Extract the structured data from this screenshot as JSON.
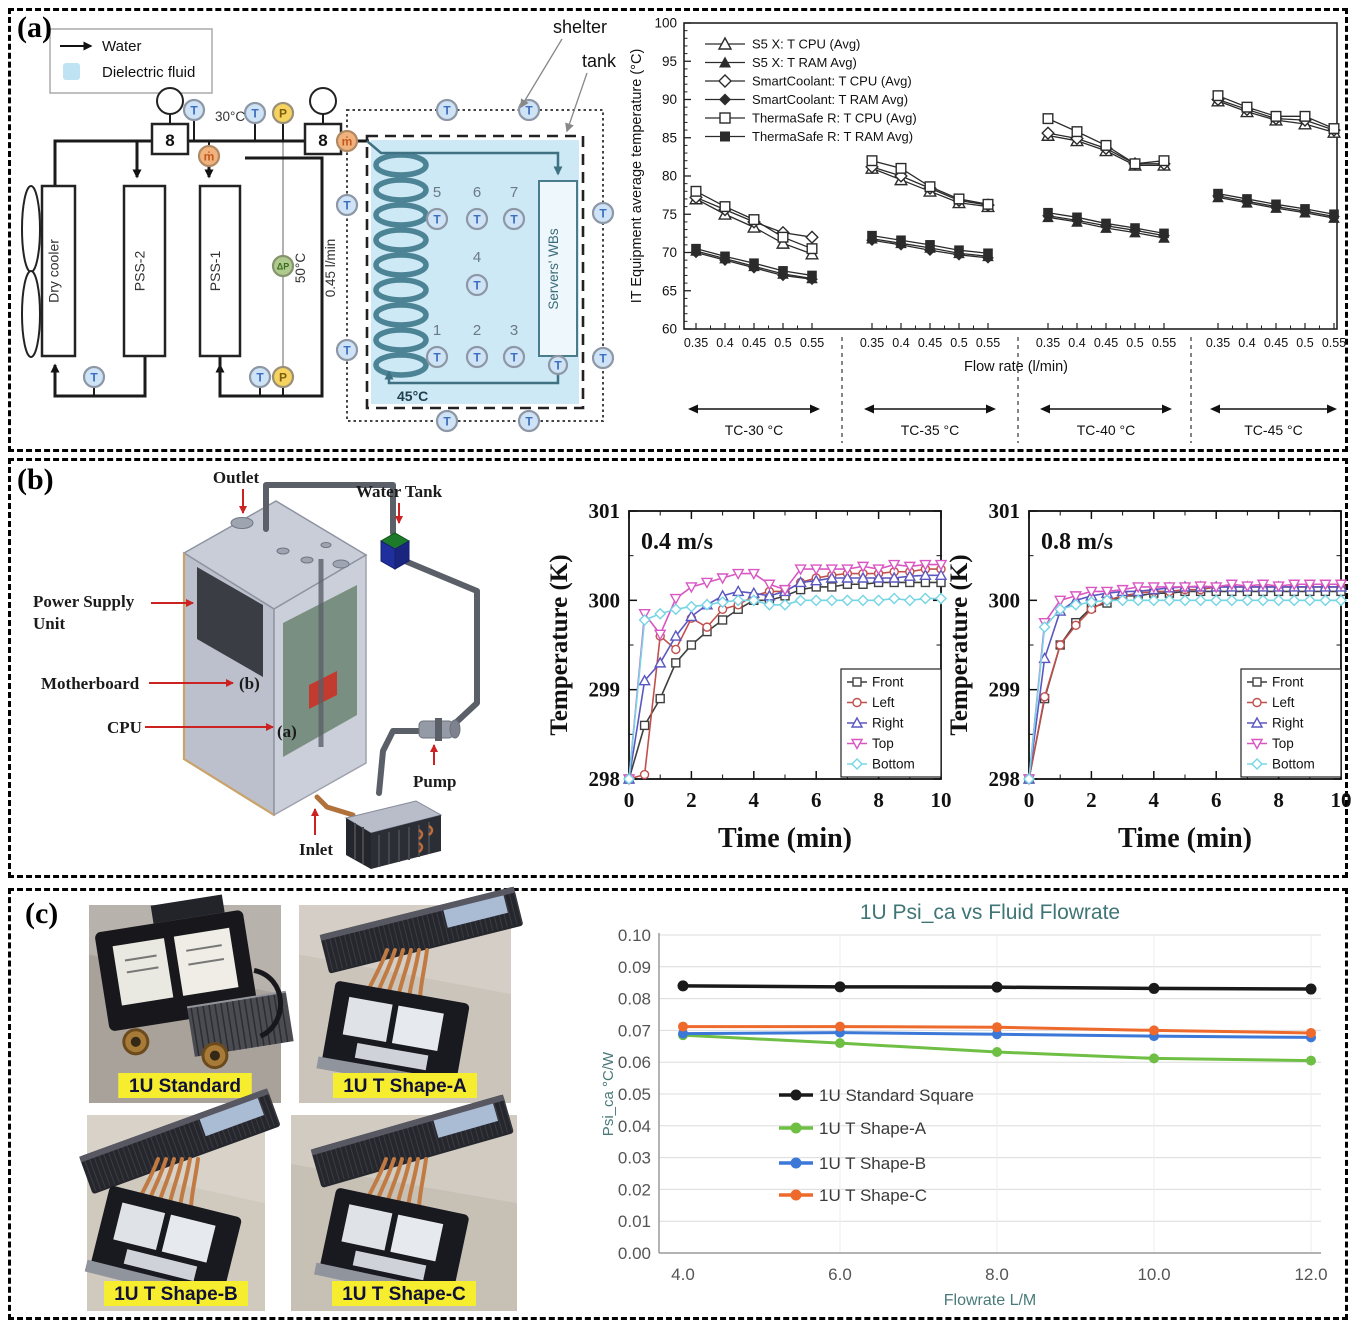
{
  "figure": {
    "panel_a_label": "(a)",
    "panel_b_label": "(b)",
    "panel_c_label": "(c)"
  },
  "panel_a": {
    "diagram": {
      "legend": {
        "water_label": "Water",
        "dielectric_label": "Dielectric fluid",
        "dielectric_color": "#bfe3f2"
      },
      "boxes": {
        "dry_cooler": "Dry cooler",
        "pss2": "PSS-2",
        "pss1": "PSS-1",
        "servers_wbs": "Servers' WBs"
      },
      "annotations": {
        "temp_in": "30°C",
        "temp_mid": "50°C",
        "flow": "0.45 l/min",
        "temp_coil": "45°C",
        "shelter": "shelter",
        "tank": "tank"
      },
      "sensors": {
        "temperature": "T",
        "pressure": "P",
        "mass_flow": "ṁ",
        "diff_pressure": "ΔP",
        "pump_glyph": "8"
      },
      "tank_sensor_numbers": [
        "1",
        "2",
        "3",
        "4",
        "5",
        "6",
        "7"
      ],
      "fluid_color": "#cde9f5"
    }
  },
  "panel_b": {
    "cad": {
      "outlet": "Outlet",
      "water_tank": "Water Tank",
      "psu_line1": "Power Supply",
      "psu_line2": "Unit",
      "motherboard": "Motherboard",
      "cpu": "CPU",
      "pump": "Pump",
      "inlet": "Inlet",
      "tag_a": "(a)",
      "tag_b": "(b)"
    }
  },
  "panel_c": {
    "photos": [
      {
        "label": "1U Standard"
      },
      {
        "label": "1U T Shape-A"
      },
      {
        "label": "1U T Shape-B"
      },
      {
        "label": "1U T Shape-C"
      }
    ],
    "label_bg": "#f5ed2e"
  },
  "chart_data": [
    {
      "id": "panel-a-it-temperature-vs-flowrate",
      "type": "line",
      "title": "",
      "xlabel": "Flow rate (l/min)",
      "ylabel": "IT Equipment average  temperature (°C)",
      "ylim": [
        60,
        100
      ],
      "yticks": [
        60,
        65,
        70,
        75,
        80,
        85,
        90,
        95,
        100
      ],
      "x_tick_labels": [
        "0.35",
        "0.4",
        "0.45",
        "0.5",
        "0.55"
      ],
      "group_labels": [
        "TC-30 °C",
        "TC-35 °C",
        "TC-40 °C",
        "TC-45 °C"
      ],
      "legend_position": "top-left",
      "series": [
        {
          "name": "S5 X: T CPU (Avg)",
          "marker": "triangle-open",
          "color": "#2b2b2b",
          "groups": [
            [
              77.0,
              75.0,
              73.3,
              71.2,
              69.8
            ],
            [
              81.0,
              79.5,
              78.0,
              76.5,
              76.0
            ],
            [
              85.3,
              84.6,
              83.3,
              81.4,
              81.4
            ],
            [
              89.8,
              88.4,
              87.3,
              86.8,
              85.7
            ]
          ]
        },
        {
          "name": "S5 X: T RAM Avg)",
          "marker": "triangle-filled",
          "color": "#2b2b2b",
          "groups": [
            [
              70.2,
              69.2,
              68.2,
              67.2,
              66.6
            ],
            [
              71.8,
              71.2,
              70.6,
              69.9,
              69.5
            ],
            [
              74.6,
              74.0,
              73.2,
              72.6,
              71.9
            ],
            [
              77.2,
              76.5,
              75.8,
              75.2,
              74.5
            ]
          ]
        },
        {
          "name": "SmartCoolant: T CPU (Avg)",
          "marker": "diamond-open",
          "color": "#2b2b2b",
          "groups": [
            [
              77.2,
              75.6,
              74.0,
              72.6,
              72.0
            ],
            [
              81.2,
              80.0,
              78.4,
              76.8,
              76.2
            ],
            [
              85.6,
              84.9,
              83.6,
              81.6,
              81.6
            ],
            [
              90.0,
              88.7,
              87.5,
              87.3,
              86.0
            ]
          ]
        },
        {
          "name": "SmartCoolant: T RAM Avg)",
          "marker": "diamond-filled",
          "color": "#2b2b2b",
          "groups": [
            [
              70.0,
              69.0,
              68.0,
              67.0,
              66.5
            ],
            [
              71.6,
              71.0,
              70.3,
              69.7,
              69.3
            ],
            [
              74.8,
              74.2,
              73.5,
              72.9,
              72.2
            ],
            [
              77.4,
              76.7,
              76.0,
              75.4,
              74.7
            ]
          ]
        },
        {
          "name": "ThermaSafe R: T CPU (Avg)",
          "marker": "square-open",
          "color": "#2b2b2b",
          "groups": [
            [
              78.0,
              76.0,
              74.3,
              72.0,
              70.5
            ],
            [
              82.0,
              81.0,
              78.6,
              77.0,
              76.3
            ],
            [
              87.5,
              85.8,
              84.0,
              81.6,
              82.0
            ],
            [
              90.5,
              89.0,
              87.8,
              87.8,
              86.2
            ]
          ]
        },
        {
          "name": "ThermaSafe R: T RAM Avg)",
          "marker": "square-filled",
          "color": "#2b2b2b",
          "groups": [
            [
              70.5,
              69.5,
              68.6,
              67.6,
              67.0
            ],
            [
              72.2,
              71.6,
              71.0,
              70.3,
              69.9
            ],
            [
              75.2,
              74.6,
              73.8,
              73.2,
              72.5
            ],
            [
              77.7,
              77.0,
              76.3,
              75.7,
              75.0
            ]
          ]
        }
      ]
    },
    {
      "id": "panel-b-transient-04ms",
      "type": "line",
      "annotation": "0.4 m/s",
      "xlabel": "Time (min)",
      "ylabel": "Temperature (K)",
      "xlim": [
        0,
        10
      ],
      "ylim": [
        298,
        301
      ],
      "xticks": [
        0,
        2,
        4,
        6,
        8,
        10
      ],
      "yticks": [
        298,
        299,
        300,
        301
      ],
      "x": [
        0,
        0.5,
        1,
        1.5,
        2,
        2.5,
        3,
        3.5,
        4,
        4.5,
        5,
        5.5,
        6,
        6.5,
        7,
        7.5,
        8,
        8.5,
        9,
        9.5,
        10
      ],
      "series": [
        {
          "name": "Front",
          "marker": "square-open",
          "color": "#3f3f3f",
          "values": [
            298.0,
            298.6,
            298.9,
            299.3,
            299.5,
            299.65,
            299.78,
            299.9,
            300.0,
            300.0,
            300.05,
            300.12,
            300.15,
            300.15,
            300.18,
            300.18,
            300.2,
            300.2,
            300.2,
            300.2,
            300.2
          ]
        },
        {
          "name": "Left",
          "marker": "circle-open",
          "color": "#c0504d",
          "values": [
            298.0,
            298.05,
            299.6,
            299.45,
            299.8,
            299.7,
            299.9,
            299.95,
            300.05,
            300.1,
            300.1,
            300.2,
            300.25,
            300.28,
            300.3,
            300.3,
            300.3,
            300.32,
            300.32,
            300.35,
            300.35
          ]
        },
        {
          "name": "Right",
          "marker": "triangle-open",
          "color": "#5b57c0",
          "values": [
            298.0,
            299.1,
            299.3,
            299.6,
            299.82,
            299.95,
            300.05,
            300.1,
            300.08,
            300.05,
            300.1,
            300.2,
            300.22,
            300.25,
            300.25,
            300.25,
            300.25,
            300.25,
            300.27,
            300.28,
            300.28
          ]
        },
        {
          "name": "Top",
          "marker": "triangle-down-open",
          "color": "#d957c3",
          "values": [
            298.0,
            299.85,
            299.62,
            300.02,
            300.15,
            300.2,
            300.25,
            300.3,
            300.3,
            300.18,
            300.12,
            300.35,
            300.35,
            300.35,
            300.35,
            300.38,
            300.35,
            300.4,
            300.38,
            300.4,
            300.4
          ]
        },
        {
          "name": "Bottom",
          "marker": "diamond-open",
          "color": "#76d5e5",
          "values": [
            298.0,
            299.78,
            299.85,
            299.9,
            299.93,
            299.95,
            299.98,
            300.0,
            300.0,
            299.95,
            299.95,
            300.0,
            300.0,
            300.0,
            300.0,
            300.0,
            300.0,
            300.02,
            300.0,
            300.02,
            300.02
          ]
        }
      ]
    },
    {
      "id": "panel-b-transient-08ms",
      "type": "line",
      "annotation": "0.8 m/s",
      "xlabel": "Time (min)",
      "ylabel": "Temperature (K)",
      "xlim": [
        0,
        10
      ],
      "ylim": [
        298,
        301
      ],
      "xticks": [
        0,
        2,
        4,
        6,
        8,
        10
      ],
      "yticks": [
        298,
        299,
        300,
        301
      ],
      "x": [
        0,
        0.5,
        1,
        1.5,
        2,
        2.5,
        3,
        3.5,
        4,
        4.5,
        5,
        5.5,
        6,
        6.5,
        7,
        7.5,
        8,
        8.5,
        9,
        9.5,
        10
      ],
      "series": [
        {
          "name": "Front",
          "marker": "square-open",
          "color": "#3f3f3f",
          "values": [
            298.0,
            298.9,
            299.5,
            299.75,
            299.92,
            299.97,
            300.05,
            300.05,
            300.08,
            300.08,
            300.1,
            300.1,
            300.1,
            300.1,
            300.1,
            300.1,
            300.1,
            300.1,
            300.1,
            300.1,
            300.1
          ]
        },
        {
          "name": "Left",
          "marker": "circle-open",
          "color": "#c0504d",
          "values": [
            298.0,
            298.92,
            299.5,
            299.72,
            299.9,
            300.0,
            300.05,
            300.08,
            300.1,
            300.1,
            300.12,
            300.12,
            300.15,
            300.15,
            300.15,
            300.15,
            300.15,
            300.15,
            300.15,
            300.15,
            300.15
          ]
        },
        {
          "name": "Right",
          "marker": "triangle-open",
          "color": "#5b57c0",
          "values": [
            298.0,
            299.35,
            299.88,
            300.0,
            300.05,
            300.08,
            300.1,
            300.1,
            300.12,
            300.14,
            300.15,
            300.15,
            300.15,
            300.15,
            300.15,
            300.15,
            300.15,
            300.15,
            300.15,
            300.15,
            300.15
          ]
        },
        {
          "name": "Top",
          "marker": "triangle-down-open",
          "color": "#d957c3",
          "values": [
            298.0,
            299.75,
            300.0,
            300.05,
            300.1,
            300.1,
            300.12,
            300.15,
            300.15,
            300.15,
            300.15,
            300.16,
            300.15,
            300.18,
            300.16,
            300.18,
            300.16,
            300.18,
            300.18,
            300.18,
            300.18
          ]
        },
        {
          "name": "Bottom",
          "marker": "diamond-open",
          "color": "#76d5e5",
          "values": [
            298.0,
            299.7,
            299.9,
            299.95,
            299.98,
            300.0,
            300.0,
            300.0,
            300.0,
            300.0,
            300.0,
            300.0,
            300.0,
            300.0,
            300.0,
            300.0,
            300.0,
            300.0,
            300.0,
            300.0,
            300.0
          ]
        }
      ]
    },
    {
      "id": "panel-c-psi-vs-flowrate",
      "type": "line",
      "title": "1U Psi_ca vs Fluid Flowrate",
      "title_color": "#3f7575",
      "xlabel": "Flowrate L/M",
      "ylabel": "Psi_ca °C/W",
      "x": [
        4.0,
        6.0,
        8.0,
        10.0,
        12.0
      ],
      "x_tick_labels": [
        "4.0",
        "6.0",
        "8.0",
        "10.0",
        "12.0"
      ],
      "ylim": [
        0,
        0.1
      ],
      "ytick_labels": [
        "0.00",
        "0.01",
        "0.02",
        "0.03",
        "0.04",
        "0.05",
        "0.06",
        "0.07",
        "0.08",
        "0.09",
        "0.10"
      ],
      "grid": true,
      "legend_position": "inside-center",
      "series": [
        {
          "name": "1U Standard Square",
          "color": "#1a1a1a",
          "values": [
            0.084,
            0.0837,
            0.0836,
            0.0832,
            0.083
          ]
        },
        {
          "name": "1U T Shape-A",
          "color": "#6fbf44",
          "values": [
            0.0685,
            0.066,
            0.0632,
            0.0612,
            0.0605
          ]
        },
        {
          "name": "1U T Shape-B",
          "color": "#3c78d8",
          "values": [
            0.069,
            0.0693,
            0.0688,
            0.0682,
            0.0678
          ]
        },
        {
          "name": "1U T Shape-C",
          "color": "#ed6a2c",
          "values": [
            0.0712,
            0.0712,
            0.071,
            0.07,
            0.0692
          ]
        }
      ]
    }
  ]
}
